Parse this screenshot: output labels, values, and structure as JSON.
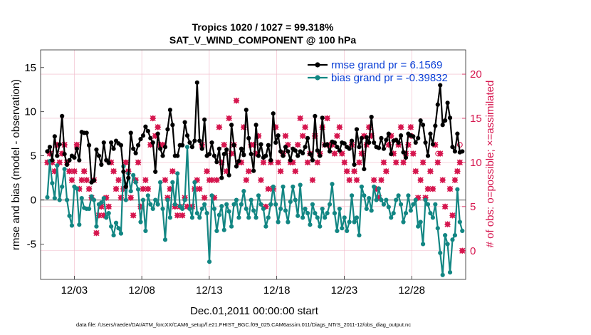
{
  "chart_data": {
    "type": "line",
    "title": "Tropics 1020 / 1027 = 99.318%",
    "subtitle": "SAT_V_WIND_COMPONENT @ 100 hPa",
    "xlabel": "Dec.01,2011 00:00:00 start",
    "ylabel": "rmse and bias (model - observation)",
    "y2label": "# of obs: o=possible; ×=assimilated",
    "footer": "data file: /Users/raeder/DAI/ATM_forcXX/CAM6_setup/f.e21.FHIST_BGC.f09_025.CAM6assim.011/Diags_NTrS_2011-12/obs_diag_output.nc",
    "xlim": [
      0,
      31.5
    ],
    "ylim": [
      -9,
      17
    ],
    "y2lim": [
      -3.25,
      22.75
    ],
    "x_ticks": [
      2.5,
      7.5,
      12.5,
      17.5,
      22.5,
      27.5
    ],
    "x_tick_labels": [
      "12/03",
      "12/08",
      "12/13",
      "12/18",
      "12/23",
      "12/28"
    ],
    "y_ticks": [
      -5,
      0,
      5,
      10,
      15
    ],
    "y_tick_labels": [
      "-5",
      "0",
      "5",
      "10",
      "15"
    ],
    "y2_ticks": [
      0,
      5,
      10,
      15,
      20
    ],
    "y2_tick_labels": [
      "0",
      "5",
      "10",
      "15",
      "20"
    ],
    "zero_line": 0,
    "legend_position": "top-right",
    "colors": {
      "rmse": "#000000",
      "bias": "#128683",
      "obs": "#d6174f",
      "grid": "#f0b8c8",
      "legend_text": "#0a3fd6",
      "zero": "#b0b0b0"
    },
    "series": [
      {
        "name": "rmse grand pr = 6.1569",
        "values": [
          5.5,
          6.0,
          4.5,
          7.2,
          5.0,
          6.3,
          9.5,
          5.2,
          4.0,
          4.5,
          5.0,
          4.8,
          5.8,
          4.5,
          7.7,
          7.6,
          7.6,
          6.2,
          2.0,
          2.2,
          5.7,
          5.0,
          4.0,
          6.5,
          4.5,
          4.2,
          6.5,
          5.8,
          6.7,
          6.4,
          6.2,
          3.2,
          1.5,
          2.5,
          7.6,
          5.8,
          5.3,
          6.2,
          6.9,
          7.3,
          8.3,
          7.8,
          7.0,
          6.5,
          3.2,
          7.5,
          5.8,
          5.0,
          6.0,
          8.0,
          10.2,
          8.5,
          5.0,
          5.0,
          6.2,
          6.2,
          8.8,
          7.3,
          6.5,
          6.0,
          6.7,
          13.3,
          6.7,
          5.8,
          9.1,
          5.0,
          5.2,
          6.5,
          5.0,
          4.3,
          5.8,
          2.5,
          5.2,
          5.7,
          2.8,
          8.5,
          6.2,
          3.8,
          4.4,
          5.8,
          5.1,
          10.2,
          7.0,
          5.2,
          3.3,
          8.5,
          5.0,
          6.3,
          4.8,
          5.0,
          6.2,
          4.5,
          9.8,
          6.5,
          7.3,
          5.5,
          5.0,
          6.0,
          5.5,
          4.5,
          5.8,
          5.6,
          5.0,
          5.5,
          5.3,
          6.0,
          7.0,
          5.2,
          4.5,
          9.5,
          5.6,
          5.0,
          9.3,
          6.2,
          6.3,
          5.5,
          6.6,
          6.5,
          6.0,
          5.6,
          6.5,
          6.4,
          6.0,
          5.8,
          6.7,
          4.0,
          8.0,
          6.0,
          7.0,
          3.5,
          7.1,
          6.5,
          9.4,
          6.5,
          6.0,
          5.9,
          7.0,
          5.8,
          6.8,
          7.5,
          5.2,
          6.7,
          6.8,
          6.5,
          7.3,
          5.4,
          4.8,
          7.5,
          7.3,
          7.2,
          6.5,
          7.0,
          9.0,
          8.5,
          6.5,
          5.0,
          7.5,
          6.3,
          8.4,
          10.8,
          13.0,
          8.5,
          9.0,
          11.0,
          9.3,
          6.0,
          5.5,
          7.5,
          5.4,
          5.5
        ],
        "values_omitted": false
      },
      {
        "name": "bias grand pr = -0.39832",
        "values": [
          0.3,
          4.4,
          1.9,
          0.2,
          3.9,
          0.0,
          1.5,
          3.5,
          0.0,
          -1.8,
          -2.9,
          1.5,
          1.3,
          -2.8,
          0.2,
          -0.9,
          -1.0,
          -1.0,
          0.4,
          0.0,
          -3.0,
          -0.5,
          -0.3,
          0.2,
          -2.0,
          -1.5,
          -3.0,
          -4.0,
          -2.6,
          -3.2,
          -3.8,
          3.8,
          0.0,
          3.0,
          1.0,
          2.8,
          2.0,
          1.2,
          -2.5,
          0.0,
          -3.5,
          0.5,
          -0.5,
          -1.0,
          0.0,
          -0.5,
          2.0,
          -1.0,
          -4.5,
          0.0,
          -2.0,
          2.0,
          -0.5,
          3.0,
          -0.7,
          -1.0,
          0.0,
          6.0,
          -1.0,
          -2.0,
          2.0,
          -1.5,
          -2.0,
          -1.0,
          -0.5,
          -1.5,
          -7.0,
          0.5,
          -1.0,
          -3.5,
          -1.7,
          -0.7,
          -3.4,
          -0.5,
          -1.3,
          -3.0,
          -0.5,
          0.0,
          -2.0,
          -0.5,
          1.0,
          -1.0,
          -2.0,
          0.0,
          -1.2,
          -2.0,
          0.5,
          -0.5,
          -1.0,
          -3.0,
          -2.0,
          -0.5,
          1.5,
          -0.5,
          -2.5,
          -1.0,
          1.5,
          -1.2,
          -2.5,
          -0.2,
          1.5,
          0.0,
          -1.8,
          1.7,
          -2.0,
          -1.0,
          -1.5,
          -2.8,
          -0.5,
          -1.5,
          -2.0,
          -3.0,
          -1.0,
          -2.0,
          -1.5,
          -0.5,
          1.8,
          -1.5,
          -3.5,
          -1.0,
          -3.2,
          -2.0,
          -3.5,
          -2.5,
          0.5,
          -2.5,
          -2.0,
          -4.0,
          1.5,
          0.5,
          -1.0,
          0.2,
          -1.2,
          1.5,
          0.0,
          1.3,
          0.0,
          -0.5,
          0.0,
          -0.8,
          -2.0,
          -1.5,
          0.0,
          0.5,
          -0.5,
          -2.5,
          -1.5,
          0.5,
          -1.2,
          -0.5,
          0.0,
          -3.0,
          -2.5,
          -5.0,
          0.0,
          -0.5,
          -1.5,
          -2.0,
          -0.5,
          -3.2,
          -6.0,
          -8.5,
          -4.0,
          -5.0,
          -8.2,
          -4.5,
          -4.0,
          1.2,
          -2.5,
          -3.5
        ],
        "values_omitted": false
      },
      {
        "name": "# of obs assimilated",
        "values": [
          10,
          11,
          10,
          9,
          12,
          10,
          11,
          12,
          10,
          9,
          8,
          9,
          12,
          7,
          8,
          9,
          8,
          7,
          6,
          8,
          2,
          4,
          5,
          4,
          6,
          5,
          10,
          9,
          7,
          8,
          6,
          7,
          10,
          9,
          6,
          4,
          8,
          10,
          5,
          7,
          8,
          7,
          12,
          15,
          13,
          14,
          12,
          12,
          8,
          6,
          7,
          9,
          5,
          4,
          5,
          4,
          6,
          5,
          5,
          5,
          7,
          8,
          7,
          12,
          6,
          9,
          8,
          8,
          6,
          8,
          14,
          10,
          12,
          9,
          15,
          11,
          12,
          17,
          10,
          10,
          14,
          8,
          9,
          12,
          12,
          11,
          13,
          8,
          10,
          5,
          7,
          10,
          7,
          14,
          10,
          9,
          11,
          13,
          12,
          10,
          10,
          9,
          12,
          15,
          13,
          14,
          10,
          11,
          8,
          13,
          10,
          11,
          14,
          12,
          15,
          12,
          12,
          11,
          13,
          14,
          11,
          10,
          9,
          8,
          12,
          9,
          8,
          10,
          11,
          13,
          12,
          14,
          13,
          8,
          7,
          6,
          8,
          10,
          9,
          12,
          13,
          11,
          10,
          12,
          14,
          10,
          11,
          12,
          14,
          11,
          9,
          6,
          8,
          10,
          6,
          7,
          9,
          7,
          12,
          10,
          11,
          8,
          5,
          3,
          7,
          4,
          8,
          9,
          10,
          0
        ],
        "values_omitted": false
      },
      {
        "name": "# of obs possible",
        "values": [
          null,
          null,
          null,
          null,
          null,
          null,
          null,
          null,
          null,
          null,
          null,
          null,
          null,
          null,
          null,
          null,
          null,
          null,
          null,
          null,
          null,
          null,
          null,
          null,
          null,
          null,
          null,
          null,
          null,
          null,
          null,
          null,
          null,
          null,
          null,
          null,
          null,
          null,
          null,
          null,
          null,
          null,
          null,
          null,
          null,
          null,
          null,
          null,
          null,
          null,
          null,
          null,
          null,
          null,
          null,
          null,
          null,
          null,
          null,
          null,
          null,
          null,
          null,
          null,
          null,
          null,
          null,
          null,
          null,
          null,
          null,
          null,
          null,
          null,
          null,
          null,
          null,
          null,
          null,
          null,
          null,
          null,
          null,
          null,
          null,
          null,
          null,
          null,
          null,
          null,
          null,
          null,
          null,
          null,
          null,
          null,
          null,
          null,
          null,
          null,
          null,
          null,
          null,
          null,
          null,
          null,
          null,
          null,
          null,
          null,
          null,
          null,
          null,
          null,
          null,
          null,
          null,
          null,
          null,
          null,
          null,
          null,
          null,
          null,
          null,
          null,
          null,
          null,
          null,
          null,
          null,
          null,
          null,
          null,
          null,
          null,
          null,
          null,
          null,
          null,
          null,
          null,
          null,
          null,
          null,
          null,
          null,
          null,
          null,
          null,
          13,
          null,
          null,
          null,
          null,
          null,
          null,
          null,
          null,
          null,
          null,
          11,
          null,
          null,
          null,
          null,
          null,
          null,
          null,
          null,
          12,
          null
        ],
        "values_omitted": false
      }
    ]
  }
}
